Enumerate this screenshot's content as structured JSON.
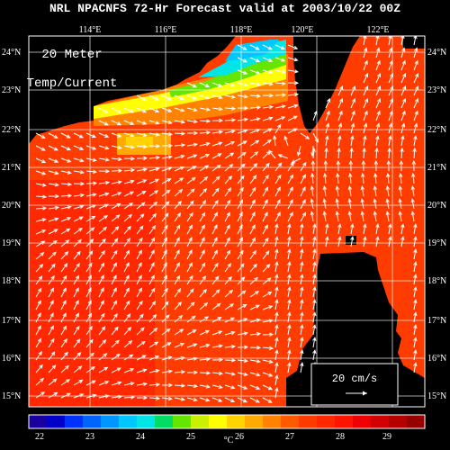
{
  "header": {
    "title": "NRL NPACNFS 72-Hr Forecast valid at 2003/10/22 00Z"
  },
  "map": {
    "field_label_line1": "20 Meter",
    "field_label_line2": "Temp/Current",
    "lon_labels": [
      "114°E",
      "116°E",
      "118°E",
      "120°E",
      "122°E"
    ],
    "lat_labels": [
      "24°N",
      "23°N",
      "22°N",
      "21°N",
      "20°N",
      "19°N",
      "18°N",
      "17°N",
      "16°N",
      "15°N"
    ],
    "reference_vector_label": "20 cm/s",
    "land_color": "#000000",
    "vector_color": "#ffffff"
  },
  "colorbar": {
    "unit": "°C",
    "tick_labels": [
      "22",
      "23",
      "24",
      "25",
      "26",
      "27",
      "28",
      "29"
    ],
    "colors": [
      "#1a00a0",
      "#0000c8",
      "#0032ff",
      "#0064ff",
      "#0096ff",
      "#00c8ff",
      "#00e6e6",
      "#00dc64",
      "#64e600",
      "#c8f000",
      "#ffff00",
      "#ffd200",
      "#ffaa00",
      "#ff8200",
      "#ff5a00",
      "#ff3c00",
      "#ff2800",
      "#ff1400",
      "#f00000",
      "#d20000",
      "#b40000",
      "#960000"
    ]
  }
}
